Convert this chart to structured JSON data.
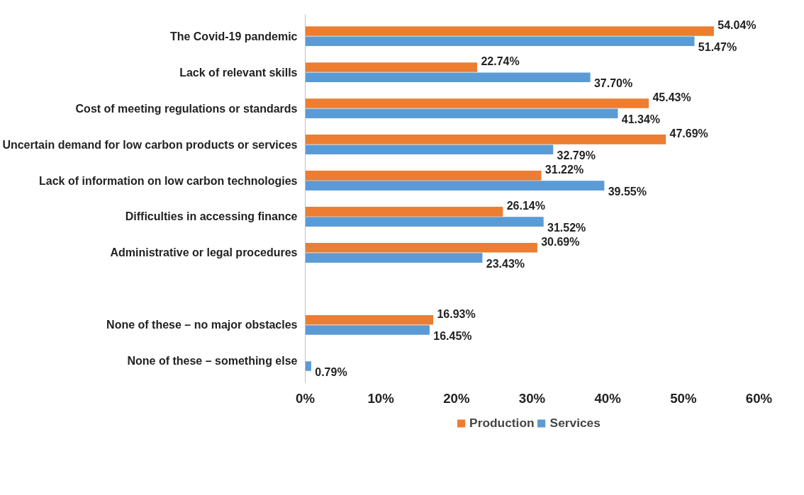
{
  "chart_data": {
    "type": "bar",
    "orientation": "horizontal",
    "categories": [
      "The Covid-19 pandemic",
      "Lack of relevant skills",
      "Cost of meeting regulations or standards",
      "Uncertain demand for low carbon products or services",
      "Lack of information on low carbon technologies",
      "Difficulties in accessing finance",
      "Administrative or legal procedures",
      null,
      "None of these – no major obstacles",
      "None of these – something else"
    ],
    "series": [
      {
        "name": "Production",
        "color": "#ed7d31",
        "values": [
          54.04,
          22.74,
          45.43,
          47.69,
          31.22,
          26.14,
          30.69,
          null,
          16.93,
          null
        ],
        "value_labels": [
          "54.04%",
          "22.74%",
          "45.43%",
          "47.69%",
          "31.22%",
          "26.14%",
          "30.69%",
          null,
          "16.93%",
          null
        ]
      },
      {
        "name": "Services",
        "color": "#5b9bd5",
        "values": [
          51.47,
          37.7,
          41.34,
          32.79,
          39.55,
          31.52,
          23.43,
          null,
          16.45,
          0.79
        ],
        "value_labels": [
          "51.47%",
          "37.70%",
          "41.34%",
          "32.79%",
          "39.55%",
          "31.52%",
          "23.43%",
          null,
          "16.45%",
          "0.79%"
        ]
      }
    ],
    "xlim": [
      0,
      60
    ],
    "xticks": [
      {
        "value": 0,
        "label": "0%"
      },
      {
        "value": 10,
        "label": "10%"
      },
      {
        "value": 20,
        "label": "20%"
      },
      {
        "value": 30,
        "label": "30%"
      },
      {
        "value": 40,
        "label": "40%"
      },
      {
        "value": 50,
        "label": "50%"
      },
      {
        "value": 60,
        "label": "60%"
      }
    ],
    "legend": "bottom",
    "grid": false
  }
}
